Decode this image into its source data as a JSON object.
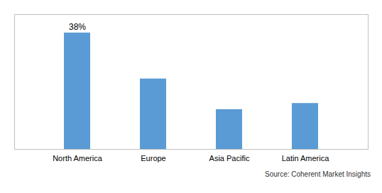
{
  "chart_data": {
    "type": "bar",
    "categories": [
      "North America",
      "Europe",
      "Asia Pacific",
      "Latin America"
    ],
    "values": [
      38,
      23,
      13,
      15
    ],
    "color": "#5B9BD5",
    "ylim": [
      0,
      44
    ],
    "yticks": [],
    "tick_labels": "x",
    "grid": false,
    "annotations": [
      {
        "text": "38%",
        "category": "North America"
      }
    ],
    "source": "Source: Coherent Market Insights"
  }
}
